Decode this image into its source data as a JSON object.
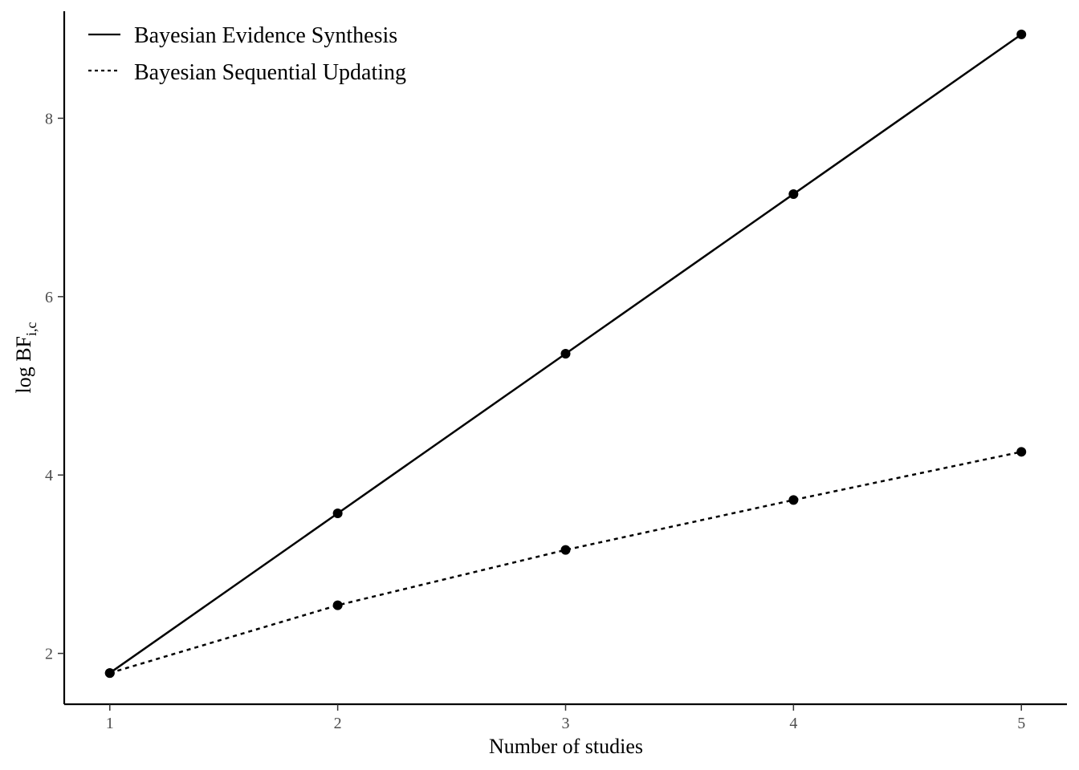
{
  "chart_data": {
    "type": "line",
    "x": [
      1,
      2,
      3,
      4,
      5
    ],
    "xlabel": "Number of studies",
    "ylabel": {
      "main": "log BF",
      "subscript": "i,c"
    },
    "x_ticks": [
      1,
      2,
      3,
      4,
      5
    ],
    "y_ticks": [
      2,
      4,
      6,
      8
    ],
    "xlim": [
      0.8,
      5.2
    ],
    "ylim": [
      1.43,
      9.2
    ],
    "grid": false,
    "legend_position": "top-left",
    "series": [
      {
        "name": "Bayesian Evidence Synthesis",
        "line_style": "solid",
        "color": "#000000",
        "values": [
          1.78,
          3.57,
          5.36,
          7.15,
          8.94
        ]
      },
      {
        "name": "Bayesian Sequential Updating",
        "line_style": "dotted",
        "color": "#000000",
        "values": [
          1.78,
          2.54,
          3.16,
          3.72,
          4.26
        ]
      }
    ]
  }
}
